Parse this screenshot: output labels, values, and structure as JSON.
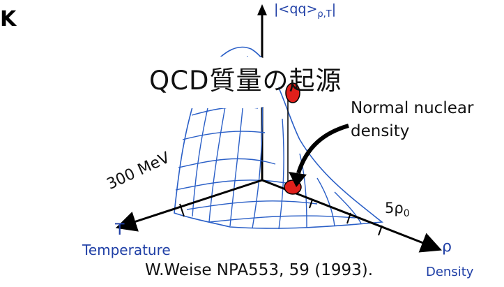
{
  "corner_text": "K",
  "title": "QCD質量の起源",
  "y_axis_label": "|<qq>",
  "y_axis_subscript": "ρ,T",
  "y_axis_end": "|",
  "normal_density_line1": "Normal nuclear",
  "normal_density_line2": "density",
  "temperature_tick": "300 MeV",
  "density_tick_main": "5ρ",
  "density_tick_sub": "0",
  "t_axis_symbol": "T",
  "t_axis_name": "Temperature",
  "rho_axis_symbol": "ρ",
  "rho_axis_name": "Density",
  "citation": "W.Weise NPA553, 59 (1993).",
  "colors": {
    "mesh": "#2a5fc7",
    "point": "#e0201b",
    "axis_label": "#1f3fa6"
  }
}
